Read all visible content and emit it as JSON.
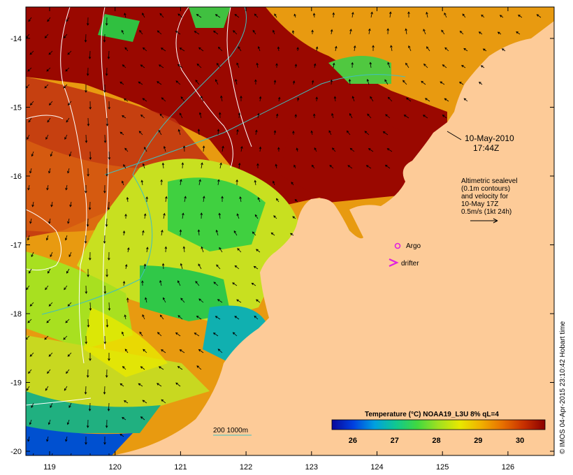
{
  "map": {
    "datetime_line1": "10-May-2010",
    "datetime_line2": "17:44Z",
    "altimetry_note": [
      "Altimetric sealevel",
      "(0.1m contours)",
      "and velocity for",
      "10-May 17Z",
      "0.5m/s (1kt 24h)"
    ],
    "legend": {
      "argo_label": "Argo",
      "drifter_label": "drifter",
      "argo_color": "#e020e0",
      "drifter_color": "#e020e0"
    },
    "isobath_label": "200  1000m",
    "isobath_color": "#40c0c0",
    "land_color": "#fdcb98",
    "colorbar": {
      "title": "Temperature (°C) NOAA19_L3U 8% qL=4",
      "ticks": [
        "26",
        "27",
        "28",
        "29",
        "30"
      ],
      "range": [
        25.5,
        30.6
      ],
      "colors": [
        "#08089a",
        "#0040e0",
        "#00a0e0",
        "#10c890",
        "#40d840",
        "#a0e020",
        "#e8e800",
        "#f0b000",
        "#e87000",
        "#c83000",
        "#8a0000"
      ]
    },
    "x_ticks": [
      "119",
      "120",
      "121",
      "122",
      "123",
      "124",
      "125",
      "126"
    ],
    "y_ticks": [
      "-14",
      "-15",
      "-16",
      "-17",
      "-18",
      "-19",
      "-20"
    ],
    "credit": "© IMOS 04-Apr-2015 23:10:42 Hobart time"
  }
}
